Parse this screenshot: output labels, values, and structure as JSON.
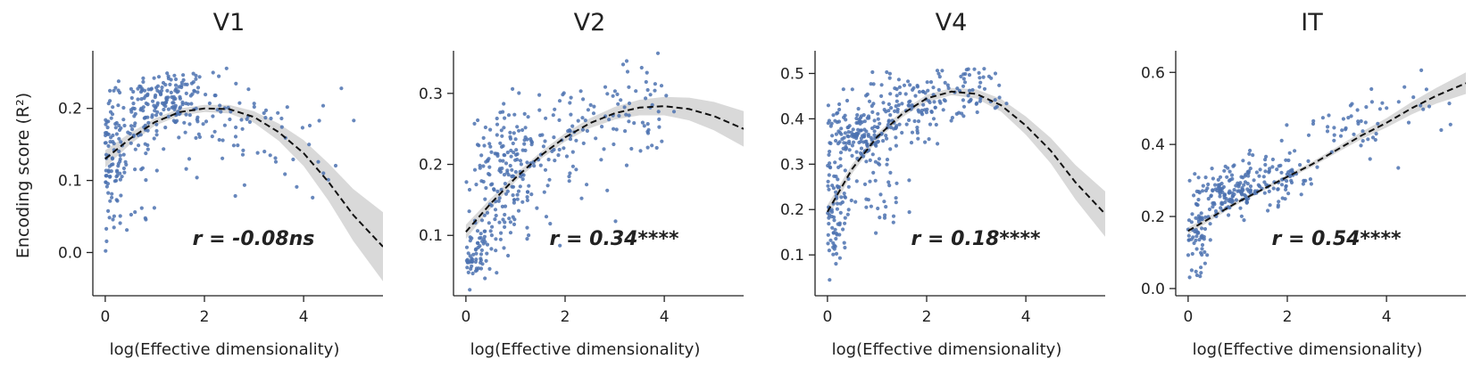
{
  "figure": {
    "ylabel": "Encoding score (R²)",
    "xlabel": "log(Effective dimensionality)"
  },
  "chart_data": [
    {
      "type": "scatter",
      "title": "V1",
      "xlabel": "log(Effective dimensionality)",
      "ylabel": "Encoding score (R²)",
      "xlim": [
        -0.25,
        5.6
      ],
      "ylim": [
        -0.06,
        0.28
      ],
      "xticks": [
        0,
        2,
        4
      ],
      "yticks": [
        0.0,
        0.1,
        0.2
      ],
      "ytick_labels": [
        "0.0",
        "0.1",
        "0.2"
      ],
      "annotation": "r = -0.08ns",
      "point_color": "#4c72b0",
      "fit": {
        "x": [
          0,
          0.5,
          1,
          1.5,
          2,
          2.5,
          3,
          3.5,
          4,
          4.5,
          5,
          5.6
        ],
        "y": [
          0.13,
          0.158,
          0.181,
          0.195,
          0.2,
          0.199,
          0.188,
          0.167,
          0.138,
          0.098,
          0.052,
          0.008
        ],
        "band_halfwidth": [
          0.012,
          0.008,
          0.005,
          0.005,
          0.005,
          0.006,
          0.008,
          0.012,
          0.018,
          0.026,
          0.036,
          0.048
        ]
      },
      "clusters": [
        {
          "cx": 1.3,
          "cy": 0.215,
          "sx": 0.4,
          "sy": 0.02,
          "n": 120
        },
        {
          "cx": 0.55,
          "cy": 0.17,
          "sx": 0.35,
          "sy": 0.04,
          "n": 90
        },
        {
          "cx": 0.1,
          "cy": 0.12,
          "sx": 0.12,
          "sy": 0.045,
          "n": 60
        },
        {
          "cx": 0.6,
          "cy": 0.05,
          "sx": 0.25,
          "sy": 0.012,
          "n": 12
        },
        {
          "cx": 2.3,
          "cy": 0.185,
          "sx": 0.6,
          "sy": 0.035,
          "n": 60
        },
        {
          "cx": 3.6,
          "cy": 0.15,
          "sx": 0.6,
          "sy": 0.04,
          "n": 30
        }
      ]
    },
    {
      "type": "scatter",
      "title": "V2",
      "xlabel": "log(Effective dimensionality)",
      "ylabel": "",
      "xlim": [
        -0.25,
        5.6
      ],
      "ylim": [
        0.015,
        0.36
      ],
      "xticks": [
        0,
        2,
        4
      ],
      "yticks": [
        0.1,
        0.2,
        0.3
      ],
      "ytick_labels": [
        "0.1",
        "0.2",
        "0.3"
      ],
      "annotation": "r = 0.34****",
      "point_color": "#4c72b0",
      "fit": {
        "x": [
          0,
          0.5,
          1,
          1.5,
          2,
          2.5,
          3,
          3.5,
          4,
          4.5,
          5,
          5.6
        ],
        "y": [
          0.105,
          0.145,
          0.181,
          0.212,
          0.238,
          0.258,
          0.272,
          0.28,
          0.282,
          0.278,
          0.268,
          0.25
        ],
        "band_halfwidth": [
          0.01,
          0.007,
          0.005,
          0.005,
          0.006,
          0.007,
          0.009,
          0.011,
          0.013,
          0.016,
          0.02,
          0.025
        ]
      },
      "clusters": [
        {
          "cx": 0.2,
          "cy": 0.07,
          "sx": 0.15,
          "sy": 0.02,
          "n": 60
        },
        {
          "cx": 0.9,
          "cy": 0.2,
          "sx": 0.4,
          "sy": 0.035,
          "n": 150
        },
        {
          "cx": 0.8,
          "cy": 0.12,
          "sx": 0.3,
          "sy": 0.025,
          "n": 40
        },
        {
          "cx": 2.2,
          "cy": 0.24,
          "sx": 0.6,
          "sy": 0.04,
          "n": 80
        },
        {
          "cx": 3.5,
          "cy": 0.28,
          "sx": 0.5,
          "sy": 0.035,
          "n": 40
        }
      ]
    },
    {
      "type": "scatter",
      "title": "V4",
      "xlabel": "log(Effective dimensionality)",
      "ylabel": "",
      "xlim": [
        -0.25,
        5.6
      ],
      "ylim": [
        0.01,
        0.55
      ],
      "xticks": [
        0,
        2,
        4
      ],
      "yticks": [
        0.1,
        0.2,
        0.3,
        0.4,
        0.5
      ],
      "ytick_labels": [
        "0.1",
        "0.2",
        "0.3",
        "0.4",
        "0.5"
      ],
      "annotation": "r = 0.18****",
      "point_color": "#4c72b0",
      "fit": {
        "x": [
          0,
          0.5,
          1,
          1.5,
          2,
          2.5,
          3,
          3.5,
          4,
          4.5,
          5,
          5.6
        ],
        "y": [
          0.195,
          0.29,
          0.36,
          0.41,
          0.445,
          0.46,
          0.455,
          0.43,
          0.385,
          0.33,
          0.26,
          0.19
        ],
        "band_halfwidth": [
          0.015,
          0.01,
          0.008,
          0.007,
          0.008,
          0.008,
          0.01,
          0.014,
          0.02,
          0.028,
          0.038,
          0.05
        ]
      },
      "clusters": [
        {
          "cx": 0.6,
          "cy": 0.36,
          "sx": 0.35,
          "sy": 0.03,
          "n": 140
        },
        {
          "cx": 0.15,
          "cy": 0.2,
          "sx": 0.15,
          "sy": 0.07,
          "n": 70
        },
        {
          "cx": 1.5,
          "cy": 0.42,
          "sx": 0.5,
          "sy": 0.04,
          "n": 110
        },
        {
          "cx": 2.8,
          "cy": 0.46,
          "sx": 0.5,
          "sy": 0.03,
          "n": 70
        },
        {
          "cx": 1.0,
          "cy": 0.25,
          "sx": 0.4,
          "sy": 0.05,
          "n": 40
        }
      ]
    },
    {
      "type": "scatter",
      "title": "IT",
      "xlabel": "log(Effective dimensionality)",
      "ylabel": "",
      "xlim": [
        -0.25,
        5.6
      ],
      "ylim": [
        -0.02,
        0.66
      ],
      "xticks": [
        0,
        2,
        4
      ],
      "yticks": [
        0.0,
        0.2,
        0.4,
        0.6
      ],
      "ytick_labels": [
        "0.0",
        "0.2",
        "0.4",
        "0.6"
      ],
      "annotation": "r = 0.54****",
      "point_color": "#4c72b0",
      "fit": {
        "x": [
          0,
          0.5,
          1,
          1.5,
          2,
          2.5,
          3,
          3.5,
          4,
          4.5,
          5,
          5.6
        ],
        "y": [
          0.16,
          0.2,
          0.24,
          0.275,
          0.31,
          0.345,
          0.385,
          0.425,
          0.46,
          0.5,
          0.535,
          0.57
        ],
        "band_halfwidth": [
          0.01,
          0.007,
          0.006,
          0.005,
          0.006,
          0.007,
          0.008,
          0.01,
          0.013,
          0.017,
          0.022,
          0.03
        ]
      },
      "clusters": [
        {
          "cx": 0.2,
          "cy": 0.15,
          "sx": 0.15,
          "sy": 0.05,
          "n": 60
        },
        {
          "cx": 0.85,
          "cy": 0.27,
          "sx": 0.35,
          "sy": 0.03,
          "n": 140
        },
        {
          "cx": 1.8,
          "cy": 0.31,
          "sx": 0.45,
          "sy": 0.04,
          "n": 80
        },
        {
          "cx": 3.2,
          "cy": 0.45,
          "sx": 0.5,
          "sy": 0.04,
          "n": 40
        },
        {
          "cx": 4.4,
          "cy": 0.5,
          "sx": 0.5,
          "sy": 0.04,
          "n": 15
        }
      ]
    }
  ]
}
